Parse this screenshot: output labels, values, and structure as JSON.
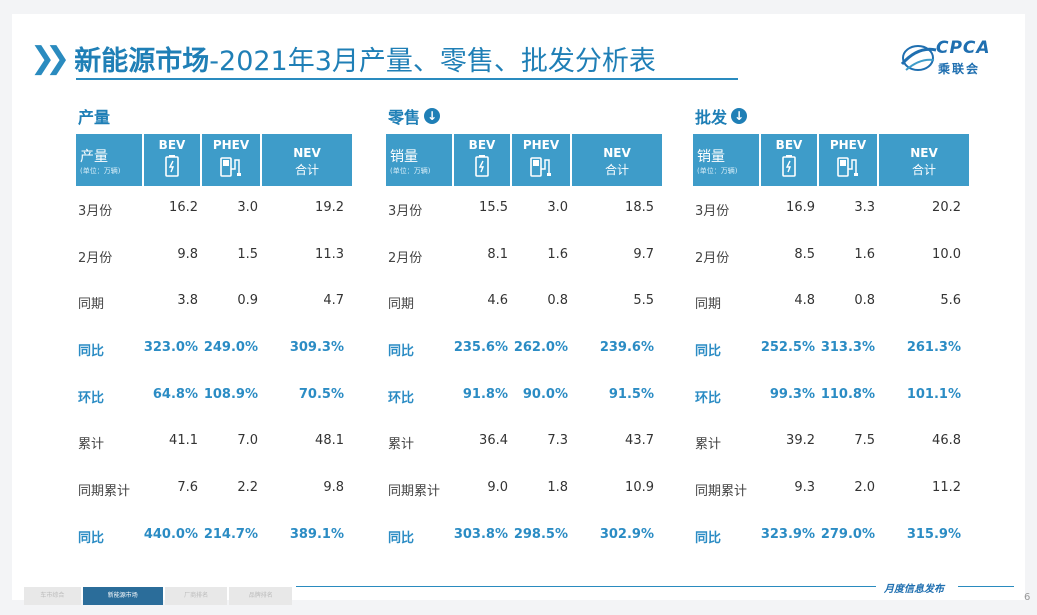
{
  "title": {
    "bold": "新能源市场",
    "rest": "-2021年3月产量、零售、批发分析表"
  },
  "logo": {
    "text": "CPCA",
    "sub": "乘联会"
  },
  "columns": {
    "bev": "BEV",
    "phev": "PHEV",
    "nev_l1": "NEV",
    "nev_l2": "合计"
  },
  "unit_label": "(单位：万辆)",
  "sections": [
    {
      "title": "产量",
      "header": "产量",
      "rows": [
        {
          "label": "3月份",
          "bev": "16.2",
          "phev": "3.0",
          "nev": "19.2"
        },
        {
          "label": "2月份",
          "bev": "9.8",
          "phev": "1.5",
          "nev": "11.3"
        },
        {
          "label": "同期",
          "bev": "3.8",
          "phev": "0.9",
          "nev": "4.7"
        },
        {
          "label": "同比",
          "bev": "323.0%",
          "phev": "249.0%",
          "nev": "309.3%"
        },
        {
          "label": "环比",
          "bev": "64.8%",
          "phev": "108.9%",
          "nev": "70.5%"
        },
        {
          "label": "累计",
          "bev": "41.1",
          "phev": "7.0",
          "nev": "48.1"
        },
        {
          "label": "同期累计",
          "bev": "7.6",
          "phev": "2.2",
          "nev": "9.8"
        },
        {
          "label": "同比",
          "bev": "440.0%",
          "phev": "214.7%",
          "nev": "389.1%"
        }
      ]
    },
    {
      "title": "零售",
      "header": "销量",
      "rows": [
        {
          "label": "3月份",
          "bev": "15.5",
          "phev": "3.0",
          "nev": "18.5"
        },
        {
          "label": "2月份",
          "bev": "8.1",
          "phev": "1.6",
          "nev": "9.7"
        },
        {
          "label": "同期",
          "bev": "4.6",
          "phev": "0.8",
          "nev": "5.5"
        },
        {
          "label": "同比",
          "bev": "235.6%",
          "phev": "262.0%",
          "nev": "239.6%"
        },
        {
          "label": "环比",
          "bev": "91.8%",
          "phev": "90.0%",
          "nev": "91.5%"
        },
        {
          "label": "累计",
          "bev": "36.4",
          "phev": "7.3",
          "nev": "43.7"
        },
        {
          "label": "同期累计",
          "bev": "9.0",
          "phev": "1.8",
          "nev": "10.9"
        },
        {
          "label": "同比",
          "bev": "303.8%",
          "phev": "298.5%",
          "nev": "302.9%"
        }
      ]
    },
    {
      "title": "批发",
      "header": "销量",
      "rows": [
        {
          "label": "3月份",
          "bev": "16.9",
          "phev": "3.3",
          "nev": "20.2"
        },
        {
          "label": "2月份",
          "bev": "8.5",
          "phev": "1.6",
          "nev": "10.0"
        },
        {
          "label": "同期",
          "bev": "4.8",
          "phev": "0.8",
          "nev": "5.6"
        },
        {
          "label": "同比",
          "bev": "252.5%",
          "phev": "313.3%",
          "nev": "261.3%"
        },
        {
          "label": "环比",
          "bev": "99.3%",
          "phev": "110.8%",
          "nev": "101.1%"
        },
        {
          "label": "累计",
          "bev": "39.2",
          "phev": "7.5",
          "nev": "46.8"
        },
        {
          "label": "同期累计",
          "bev": "9.3",
          "phev": "2.0",
          "nev": "11.2"
        },
        {
          "label": "同比",
          "bev": "323.9%",
          "phev": "279.0%",
          "nev": "315.9%"
        }
      ]
    }
  ],
  "footer": {
    "tabs": [
      "车市综合",
      "新能源市场",
      "厂商排名",
      "品牌排名"
    ],
    "text": "月度信息发布",
    "page": "6"
  }
}
